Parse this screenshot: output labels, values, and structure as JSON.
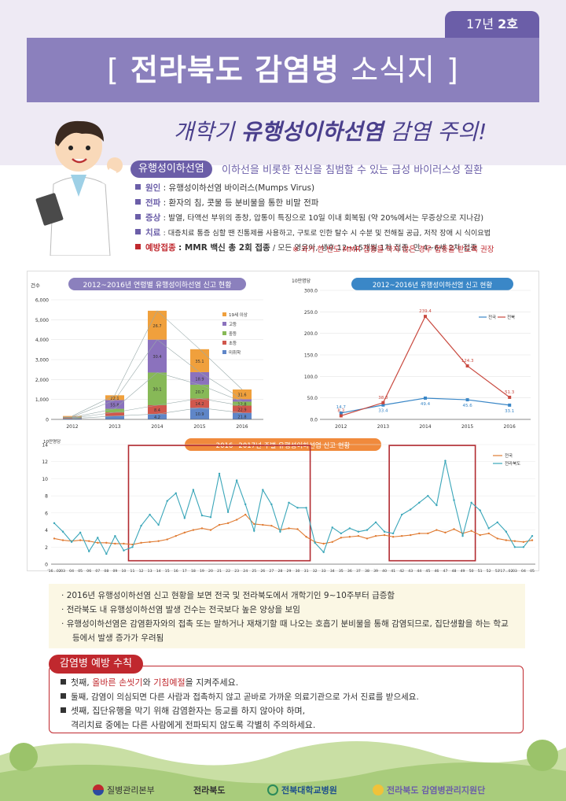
{
  "issue": {
    "year": "17년",
    "number": "2호"
  },
  "title": {
    "open": "[",
    "text": "전라북도 감염병",
    "text2": "소식지",
    "close": "]"
  },
  "subtitle": {
    "pre": "개학기",
    "bold": "유행성이하선염",
    "post": "감염 주의!"
  },
  "definition": {
    "badge": "유행성이하선염",
    "text": "이하선을 비롯한 전신을 침범할 수 있는 급성 바이러스성 질환"
  },
  "info": [
    {
      "key": "원인",
      "value": ": 유행성이하선염 바이러스(Mumps Virus)"
    },
    {
      "key": "전파",
      "value": ": 환자의 침, 콧물 등 분비물을 통한 비말 전파"
    },
    {
      "key": "증상",
      "value": ": 발열, 타액선 부위의 종창, 압통이 특징으로 10일 이내 회복됨 (약 20%에서는 무증상으로 지나감)"
    },
    {
      "key": "치료",
      "value": ": 대증치료 통증 심할 땐 진통제를 사용하고, 구토로 인한 탈수 시 수분 및 전해질 공급, 저작 장애 시 식이요법"
    }
  ],
  "vaccination": {
    "key": "예방접종",
    "value": ": MMR 백신 총 2회 접종",
    "rest": " / 모든 영유아, 생후 12~15개월 1차 접종, 만 4~6세 2차 접종"
  },
  "note": "※ 과거 한 번도 MMR 접종을 하지 않은 경우 접종을 받도록 권장",
  "colors": {
    "purple": "#6b5ea8",
    "red": "#c0282e",
    "national": "#e07b32",
    "jeonbuk_line": "#3aa6b9"
  },
  "chart_data": [
    {
      "type": "bar",
      "title": "2012~2016년 연령별 유행성이하선염 신고 현황",
      "ylabel": "건수",
      "ylim": [
        0,
        6000
      ],
      "yticks": [
        "0",
        "1,000",
        "2,000",
        "3,000",
        "4,000",
        "5,000",
        "6,000"
      ],
      "categories": [
        "2012",
        "2013",
        "2014",
        "2015",
        "2016"
      ],
      "series": [
        {
          "name": "미취학",
          "values": [
            40,
            170,
            270,
            580,
            330
          ],
          "labels": [
            "",
            "",
            "4.2",
            "10.9",
            "21.8"
          ]
        },
        {
          "name": "초등",
          "values": [
            30,
            180,
            440,
            470,
            360
          ],
          "labels": [
            "",
            "",
            "8.4",
            "14.2",
            "22.9"
          ]
        },
        {
          "name": "중등",
          "values": [
            30,
            180,
            1640,
            690,
            200
          ],
          "labels": [
            "",
            "",
            "30.1",
            "20.7",
            "12.8"
          ]
        },
        {
          "name": "고등",
          "values": [
            30,
            440,
            1650,
            630,
            120
          ],
          "labels": [
            "",
            "55.8",
            "30.4",
            "18.9",
            ""
          ]
        },
        {
          "name": "19세 이상",
          "values": [
            40,
            240,
            1450,
            1150,
            490
          ],
          "labels": [
            "",
            "22.1",
            "26.7",
            "35.1",
            "31.6"
          ]
        }
      ],
      "extra_labels": [
        {
          "year": "2013",
          "labels": [
            "7.5",
            "4.1",
            "11.3"
          ]
        }
      ]
    },
    {
      "type": "line",
      "title": "2012~2016년 유행성이하선염 신고 현황",
      "ylabel": "10만명당",
      "ylim": [
        0,
        300
      ],
      "yticks": [
        "0.0",
        "50.0",
        "100.0",
        "150.0",
        "200.0",
        "250.0",
        "300.0"
      ],
      "categories": [
        "2012",
        "2013",
        "2014",
        "2015",
        "2016"
      ],
      "series": [
        {
          "name": "전국",
          "values": [
            14.7,
            33.4,
            49.4,
            45.6,
            33.1
          ]
        },
        {
          "name": "전북",
          "values": [
            8.3,
            38.8,
            239.4,
            124.3,
            51.3
          ]
        }
      ]
    },
    {
      "type": "line",
      "title": "2016~2017년 주별 유행성이하선염 신고 현황",
      "ylabel": "10만명당",
      "ylim": [
        0,
        14
      ],
      "yticks": [
        "0",
        "2",
        "4",
        "6",
        "8",
        "10",
        "12",
        "14"
      ],
      "x": [
        "'16...02",
        "03",
        "04",
        "05",
        "06",
        "07",
        "08",
        "09",
        "10",
        "11",
        "12",
        "13",
        "14",
        "15",
        "16",
        "17",
        "18",
        "19",
        "20",
        "21",
        "22",
        "23",
        "24",
        "25",
        "26",
        "27",
        "28",
        "29",
        "30",
        "31",
        "32",
        "33",
        "34",
        "35",
        "36",
        "37",
        "38",
        "39",
        "40",
        "41",
        "42",
        "43",
        "44",
        "45",
        "46",
        "47",
        "48",
        "49",
        "50",
        "51",
        "52",
        "53",
        "'17...02",
        "03",
        "04",
        "05"
      ],
      "series": [
        {
          "name": "전국",
          "values": [
            3.0,
            2.8,
            2.7,
            2.8,
            2.7,
            2.5,
            2.5,
            2.4,
            2.4,
            2.3,
            2.5,
            2.6,
            2.7,
            2.9,
            3.3,
            3.7,
            4.0,
            4.2,
            4.0,
            4.6,
            4.8,
            5.2,
            5.8,
            4.7,
            4.6,
            4.5,
            4.0,
            4.2,
            4.1,
            3.2,
            2.6,
            2.4,
            2.6,
            3.1,
            3.2,
            3.3,
            3.0,
            3.3,
            3.4,
            3.2,
            3.3,
            3.4,
            3.6,
            3.6,
            4.0,
            3.7,
            4.1,
            3.6,
            3.9,
            3.4,
            3.6,
            3.0,
            2.8,
            2.7,
            2.6,
            2.8
          ]
        },
        {
          "name": "전라북도",
          "values": [
            4.8,
            3.8,
            2.6,
            3.7,
            1.5,
            3.1,
            1.2,
            3.3,
            1.6,
            2.0,
            4.5,
            5.8,
            4.6,
            7.4,
            8.3,
            5.4,
            8.7,
            5.7,
            5.5,
            10.6,
            6.1,
            9.8,
            7.0,
            3.9,
            8.7,
            7.0,
            3.8,
            7.2,
            6.6,
            6.6,
            2.5,
            1.4,
            4.3,
            3.6,
            4.2,
            3.8,
            4.0,
            4.9,
            3.8,
            3.6,
            5.8,
            6.4,
            7.2,
            8.0,
            6.9,
            12.1,
            7.5,
            3.3,
            7.2,
            6.3,
            4.2,
            4.9,
            3.8,
            2.0,
            2.0,
            3.3
          ]
        }
      ],
      "highlight_ranges": [
        [
          "11",
          "31"
        ],
        [
          "41",
          "50"
        ]
      ]
    }
  ],
  "summary": [
    "2016년 유행성이하선염 신고 현황을 보면 전국 및 전라북도에서 개학기인 9~10주부터 급증함",
    "전라북도 내 유행성이하선염 발생 건수는 전국보다 높은 양상을 보임",
    "유행성이하선염은 감염환자와의 접촉 또는 말하거나 재채기할 때 나오는 호흡기 분비물을 통해 감염되므로, 집단생활을 하는 학교 등에서 발생 증가가 우려됨"
  ],
  "prevention": {
    "title": "감염병 예방 수칙",
    "items": [
      {
        "pre": "첫째, ",
        "hl1": "올바른 손씻기",
        "mid": "와 ",
        "hl2": "기침예절",
        "post": "을 지켜주세요."
      },
      {
        "pre": "둘째, 감염이 의심되면 다른 사람과 접촉하지 않고 곧바로 가까운 의료기관으로 가서 진료를 받으세요.",
        "hl1": "",
        "mid": "",
        "hl2": "",
        "post": ""
      },
      {
        "pre": "셋째, 집단유행을 막기 위해 감염환자는 등교를 하지 않아야 하며,",
        "hl1": "",
        "mid": "",
        "hl2": "",
        "post": ""
      }
    ],
    "continuation": "격리치료 중에는 다른 사람에게 전파되지 않도록 각별히 주의하세요."
  },
  "logos": [
    "질병관리본부",
    "전라북도",
    "전북대학교병원",
    "전라북도 감염병관리지원단"
  ]
}
